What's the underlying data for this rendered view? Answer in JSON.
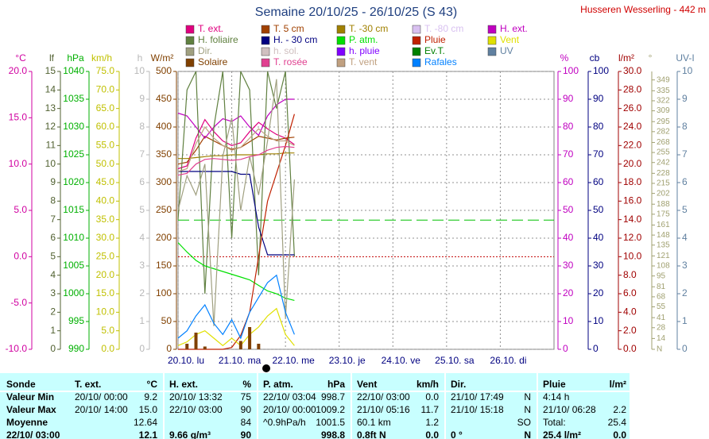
{
  "station": "Husseren Wesserling - 442 m",
  "chart_data": {
    "type": "line",
    "title": "Semaine 20/10/25 - 26/10/25 (S 43)",
    "x": [
      0,
      4,
      8,
      12,
      16,
      20,
      24,
      28,
      32,
      36,
      40,
      44,
      48,
      52
    ],
    "xlim": [
      0,
      168
    ],
    "xticks": [
      {
        "value": 0,
        "label": "20.10. lu"
      },
      {
        "value": 24,
        "label": "21.10. ma"
      },
      {
        "value": 48,
        "label": "22.10. me"
      },
      {
        "value": 72,
        "label": "23.10. je"
      },
      {
        "value": 96,
        "label": "24.10. ve"
      },
      {
        "value": 120,
        "label": "25.10. sa"
      },
      {
        "value": 144,
        "label": "26.10. di"
      }
    ],
    "grid": true,
    "axes": [
      {
        "label": "°C",
        "color": "#d000a0",
        "ylim": [
          -10,
          20
        ],
        "yticks": [
          {
            "value": -10,
            "label": "-10.0"
          },
          {
            "value": -5,
            "label": "-5.0"
          },
          {
            "value": 0,
            "label": "0.0"
          },
          {
            "value": 5,
            "label": "5.0"
          },
          {
            "value": 10,
            "label": "10.0"
          },
          {
            "value": 15,
            "label": "15.0"
          },
          {
            "value": 20,
            "label": "20.0"
          }
        ]
      },
      {
        "label": "lf",
        "color": "#506030",
        "ylim": [
          0,
          15
        ],
        "yticks": [
          0,
          1,
          2,
          3,
          4,
          5,
          6,
          7,
          8,
          9,
          10,
          11,
          12,
          13,
          14,
          15
        ]
      },
      {
        "label": "hPa",
        "color": "#00b000",
        "ylim": [
          990,
          1040
        ],
        "yticks": [
          990,
          995,
          1000,
          1005,
          1010,
          1015,
          1020,
          1025,
          1030,
          1035,
          1040
        ]
      },
      {
        "label": "km/h",
        "color": "#c0c000",
        "ylim": [
          0,
          75
        ],
        "yticks": [
          {
            "value": 0,
            "label": "0.0"
          },
          {
            "value": 5,
            "label": "5.0"
          },
          {
            "value": 10,
            "label": "10.0"
          },
          {
            "value": 15,
            "label": "15.0"
          },
          {
            "value": 20,
            "label": "20.0"
          },
          {
            "value": 25,
            "label": "25.0"
          },
          {
            "value": 30,
            "label": "30.0"
          },
          {
            "value": 35,
            "label": "35.0"
          },
          {
            "value": 40,
            "label": "40.0"
          },
          {
            "value": 45,
            "label": "45.0"
          },
          {
            "value": 50,
            "label": "50.0"
          },
          {
            "value": 55,
            "label": "55.0"
          },
          {
            "value": 60,
            "label": "60.0"
          },
          {
            "value": 65,
            "label": "65.0"
          },
          {
            "value": 70,
            "label": "70.0"
          },
          {
            "value": 75,
            "label": "75.0"
          }
        ]
      },
      {
        "label": "h",
        "color": "#b8b8b8",
        "ylim": [
          0,
          10
        ],
        "yticks": [
          0,
          1,
          2,
          3,
          4,
          5,
          6,
          7,
          8,
          9,
          10
        ]
      },
      {
        "label": "W/m²",
        "color": "#804000",
        "ylim": [
          0,
          500
        ],
        "yticks": [
          0,
          50,
          100,
          150,
          200,
          250,
          300,
          350,
          400,
          450,
          500
        ]
      },
      {
        "label": "%",
        "color": "#c000c0",
        "ylim": [
          0,
          100
        ],
        "yticks": [
          0,
          10,
          20,
          30,
          40,
          50,
          60,
          70,
          80,
          90,
          100
        ]
      },
      {
        "label": "cb",
        "color": "#000080",
        "ylim": [
          0,
          100
        ],
        "yticks": [
          0,
          10,
          20,
          30,
          40,
          50,
          60,
          70,
          80,
          90,
          100
        ]
      },
      {
        "label": "l/m²",
        "color": "#a00000",
        "ylim": [
          0,
          30
        ],
        "yticks": [
          {
            "value": 0,
            "label": "0.0"
          },
          {
            "value": 2,
            "label": "2.0"
          },
          {
            "value": 4,
            "label": "4.0"
          },
          {
            "value": 6,
            "label": "6.0"
          },
          {
            "value": 8,
            "label": "8.0"
          },
          {
            "value": 10,
            "label": "10.0"
          },
          {
            "value": 12,
            "label": "12.0"
          },
          {
            "value": 14,
            "label": "14.0"
          },
          {
            "value": 16,
            "label": "16.0"
          },
          {
            "value": 18,
            "label": "18.0"
          },
          {
            "value": 20,
            "label": "20.0"
          },
          {
            "value": 22,
            "label": "22.0"
          },
          {
            "value": 24,
            "label": "24.0"
          },
          {
            "value": 26,
            "label": "26.0"
          },
          {
            "value": 28,
            "label": "28.0"
          },
          {
            "value": 30,
            "label": "30.0"
          }
        ]
      },
      {
        "label": "°",
        "color": "#a0a070",
        "ylim": [
          0,
          360
        ],
        "yticks": [
          {
            "value": 0,
            "label": "N"
          },
          14,
          28,
          41,
          55,
          68,
          81,
          95,
          108,
          121,
          135,
          148,
          161,
          175,
          188,
          202,
          215,
          228,
          242,
          255,
          268,
          282,
          295,
          309,
          322,
          335,
          349
        ]
      },
      {
        "label": "UV-I",
        "color": "#6080a0",
        "ylim": [
          0,
          10
        ],
        "yticks": [
          0,
          1,
          2,
          3,
          4,
          5,
          6,
          7,
          8,
          9,
          10
        ]
      }
    ],
    "reference_lines": [
      {
        "axis": 0,
        "value": 0,
        "color": "#c00000"
      },
      {
        "axis": 2,
        "value": 1013.25,
        "color": "#00c000"
      }
    ],
    "series": [
      {
        "name": "T. ext.",
        "color": "#e0007f",
        "axis": 0,
        "values": [
          9.5,
          9.8,
          12.8,
          14.8,
          13.5,
          12.5,
          12,
          12.3,
          13.5,
          14.5,
          13.8,
          13.2,
          12.8,
          12.1
        ]
      },
      {
        "name": "T. 5 cm",
        "color": "#a04000",
        "axis": 0,
        "values": [
          10,
          10.2,
          11.5,
          13,
          12.5,
          12,
          11.6,
          11.8,
          12.4,
          13,
          12.8,
          12.6,
          12.8,
          12.9
        ]
      },
      {
        "name": "T. -30 cm",
        "color": "#a08000",
        "axis": 0,
        "values": [
          10.6,
          10.6,
          10.7,
          10.8,
          10.9,
          10.9,
          11,
          11,
          11,
          11,
          11.1,
          11.1,
          11.2,
          11.2
        ]
      },
      {
        "name": "T. -80 cm",
        "color": "#d8c0f0",
        "axis": 0,
        "values": [
          null,
          null,
          null,
          null,
          null,
          null,
          null,
          null,
          null,
          null,
          null,
          null,
          null,
          null
        ]
      },
      {
        "name": "H. ext.",
        "color": "#c000c0",
        "axis": 6,
        "values": [
          85,
          84,
          80,
          76,
          80,
          83,
          82,
          84,
          80,
          77,
          84,
          88,
          90,
          90
        ]
      },
      {
        "name": "H. foliaire",
        "color": "#608040",
        "axis": 1,
        "values": [
          7,
          14,
          15,
          3,
          12,
          15,
          6,
          15,
          14,
          4,
          15,
          13,
          15,
          5
        ]
      },
      {
        "name": "H. - 30 cm",
        "color": "#000080",
        "axis": 7,
        "values": [
          64,
          64,
          64,
          64,
          64,
          64,
          64,
          63,
          63,
          44,
          34,
          34,
          34,
          34
        ]
      },
      {
        "name": "P. atm.",
        "color": "#00e000",
        "axis": 2,
        "values": [
          1009.2,
          1007.5,
          1006,
          1005,
          1004.5,
          1004,
          1003.5,
          1003,
          1002.5,
          1001.5,
          1000.5,
          1000,
          999.2,
          998.8
        ]
      },
      {
        "name": "Pluie",
        "color": "#c02000",
        "axis": 8,
        "values": [
          0,
          0,
          0,
          0,
          0,
          0,
          0.2,
          1.5,
          4,
          10,
          16,
          19,
          22,
          25.4
        ]
      },
      {
        "name": "Vent",
        "color": "#e0e000",
        "axis": 3,
        "values": [
          1,
          2,
          4,
          5,
          3,
          1,
          3,
          1,
          4,
          6,
          9,
          11,
          4,
          1
        ]
      },
      {
        "name": "Dir.",
        "color": "#a0a080",
        "axis": 9,
        "values": [
          180,
          225,
          200,
          240,
          30,
          250,
          300,
          180,
          250,
          200,
          270,
          350,
          40,
          220
        ]
      },
      {
        "name": "h. sol.",
        "color": "#d0c0c0",
        "axis": 4,
        "values": [
          null,
          null,
          null,
          null,
          null,
          null,
          null,
          null,
          null,
          null,
          null,
          null,
          null,
          null
        ]
      },
      {
        "name": "h. pluie",
        "color": "#8000ff",
        "axis": 4,
        "values": [
          null,
          null,
          null,
          null,
          null,
          null,
          null,
          null,
          null,
          null,
          null,
          null,
          null,
          null
        ]
      },
      {
        "name": "Ev.T.",
        "color": "#008000",
        "axis": 8,
        "values": [
          null,
          null,
          null,
          null,
          null,
          null,
          null,
          null,
          null,
          null,
          null,
          null,
          null,
          null
        ]
      },
      {
        "name": "UV",
        "color": "#6080a0",
        "axis": 10,
        "values": [
          null,
          null,
          null,
          null,
          null,
          null,
          null,
          null,
          null,
          null,
          null,
          null,
          null,
          null
        ]
      },
      {
        "name": "Solaire",
        "color": "#804000",
        "axis": 5,
        "kind": "bar",
        "values": [
          0,
          10,
          30,
          5,
          0,
          0,
          0,
          15,
          40,
          10,
          0,
          0,
          0,
          0
        ]
      },
      {
        "name": "T. rosée",
        "color": "#e04090",
        "axis": 0,
        "values": [
          8.8,
          9,
          10,
          10.5,
          10.6,
          10.5,
          10.4,
          10.5,
          10.8,
          11,
          11.5,
          11.8,
          11.9,
          11.8
        ]
      },
      {
        "name": "T. vent",
        "color": "#c0a080",
        "axis": 0,
        "values": [
          9.2,
          9.5,
          12.2,
          14,
          12.8,
          12,
          11.5,
          11.8,
          12.8,
          13.8,
          13,
          12.5,
          12.5,
          12
        ]
      },
      {
        "name": "Rafales",
        "color": "#0080ff",
        "axis": 3,
        "values": [
          3,
          5,
          9,
          12,
          7,
          4,
          8,
          3,
          10,
          14,
          18,
          20,
          10,
          4
        ]
      }
    ]
  },
  "summary_table": {
    "header": [
      "Sonde",
      "T. ext.",
      "°C",
      "H. ext.",
      "%",
      "P. atm.",
      "hPa",
      "Vent",
      "km/h",
      "Dir.",
      null,
      "Pluie",
      "l/m²"
    ],
    "rows": [
      [
        "Valeur Min",
        "20/10/ 00:00",
        "9.2",
        "20/10/ 13:32",
        "75",
        "22/10/ 03:04",
        "998.7",
        "22/10/ 03:00",
        "0.0",
        "21/10/ 17:49",
        "N",
        "4:14 h",
        null
      ],
      [
        "Valeur Max",
        "20/10/ 14:00",
        "15.0",
        "22/10/ 03:00",
        "90",
        "20/10/ 00:00",
        "1009.2",
        "21/10/ 05:16",
        "11.7",
        "21/10/ 15:18",
        "N",
        "21/10/ 06:28",
        "2.2"
      ],
      [
        "Moyenne",
        null,
        "12.64",
        null,
        "84",
        "^0.9hPa/h",
        "1001.5",
        "60.1 km",
        "1.2",
        null,
        "SO",
        "Total:",
        "25.4"
      ],
      [
        "22/10/ 03:00",
        null,
        "12.1",
        "9.66 g/m³",
        "90",
        null,
        "998.8",
        "0.8ft N",
        "0.0",
        "0 °",
        "N",
        "25.4 l/m²",
        "0.0"
      ]
    ]
  }
}
